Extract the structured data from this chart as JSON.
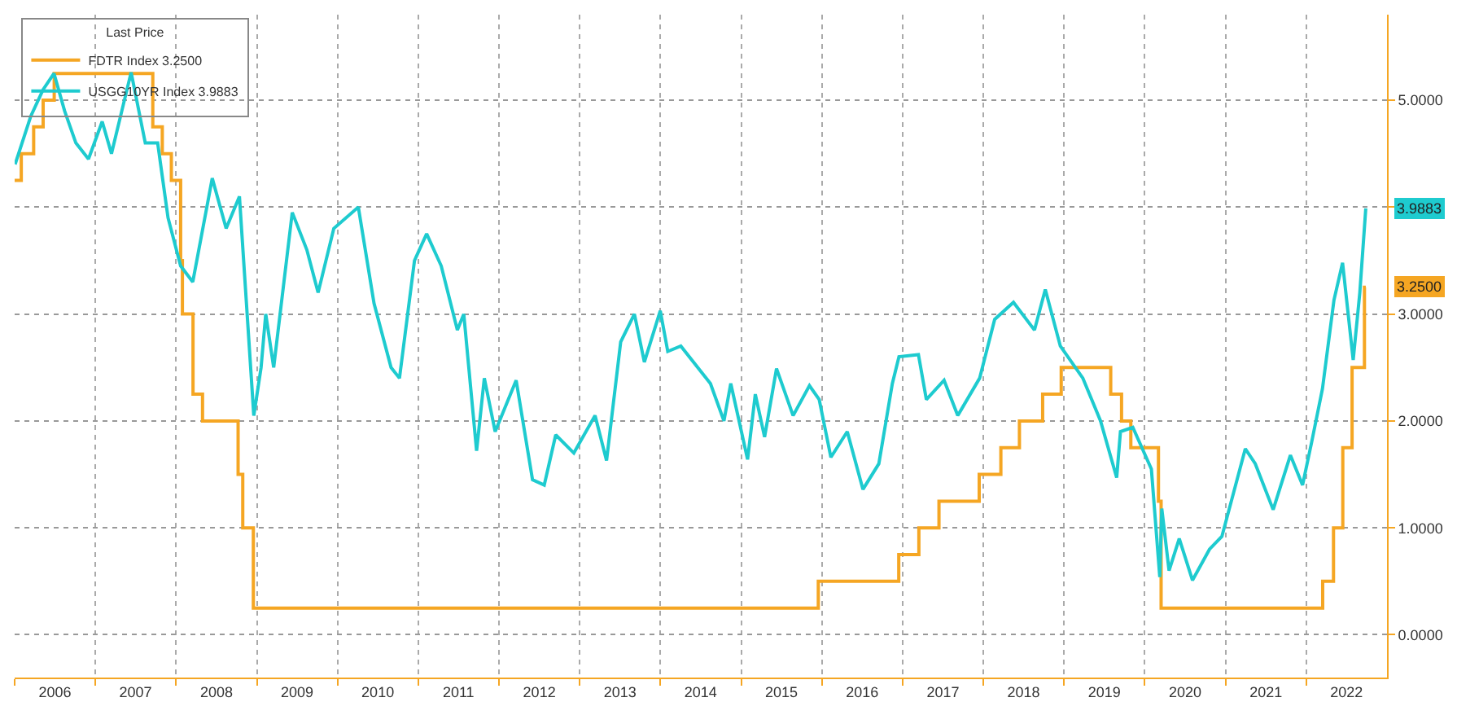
{
  "chart_data": {
    "type": "line",
    "legend_title": "Last Price",
    "legend": "top left",
    "grid": true,
    "xlim": [
      "2006-01-01",
      "2023-01-01"
    ],
    "xticks": [
      {
        "value": "2006-01-01",
        "label": null
      },
      {
        "value": "2006-07-02",
        "label": "2006"
      },
      {
        "value": "2007-01-01",
        "label": null
      },
      {
        "value": "2007-07-02",
        "label": "2007"
      },
      {
        "value": "2008-01-01",
        "label": null
      },
      {
        "value": "2008-07-02",
        "label": "2008"
      },
      {
        "value": "2009-01-01",
        "label": null
      },
      {
        "value": "2009-07-02",
        "label": "2009"
      },
      {
        "value": "2010-01-01",
        "label": null
      },
      {
        "value": "2010-07-02",
        "label": "2010"
      },
      {
        "value": "2011-01-01",
        "label": null
      },
      {
        "value": "2011-07-02",
        "label": "2011"
      },
      {
        "value": "2012-01-01",
        "label": null
      },
      {
        "value": "2012-07-02",
        "label": "2012"
      },
      {
        "value": "2013-01-01",
        "label": null
      },
      {
        "value": "2013-07-02",
        "label": "2013"
      },
      {
        "value": "2014-01-01",
        "label": null
      },
      {
        "value": "2014-07-02",
        "label": "2014"
      },
      {
        "value": "2015-01-01",
        "label": null
      },
      {
        "value": "2015-07-02",
        "label": "2015"
      },
      {
        "value": "2016-01-01",
        "label": null
      },
      {
        "value": "2016-07-02",
        "label": "2016"
      },
      {
        "value": "2017-01-01",
        "label": null
      },
      {
        "value": "2017-07-02",
        "label": "2017"
      },
      {
        "value": "2018-01-01",
        "label": null
      },
      {
        "value": "2018-07-02",
        "label": "2018"
      },
      {
        "value": "2019-01-01",
        "label": null
      },
      {
        "value": "2019-07-02",
        "label": "2019"
      },
      {
        "value": "2020-01-01",
        "label": null
      },
      {
        "value": "2020-07-02",
        "label": "2020"
      },
      {
        "value": "2021-01-01",
        "label": null
      },
      {
        "value": "2021-07-02",
        "label": "2021"
      },
      {
        "value": "2022-01-01",
        "label": null
      },
      {
        "value": "2022-07-02",
        "label": "2022"
      }
    ],
    "ylim": [
      -0.4,
      5.8
    ],
    "yticks": [
      {
        "value": 0,
        "label": "0.0000"
      },
      {
        "value": 1,
        "label": "1.0000"
      },
      {
        "value": 2,
        "label": "2.0000"
      },
      {
        "value": 3,
        "label": "3.0000"
      },
      {
        "value": 4,
        "label": null
      },
      {
        "value": 5,
        "label": "5.0000"
      }
    ],
    "series": [
      {
        "name": "FDTR Index 3.2500",
        "type": "step",
        "color": "#f5a623",
        "x": [
          "2006-01-01",
          "2006-01-31",
          "2006-03-28",
          "2006-05-10",
          "2006-06-29",
          "2007-09-18",
          "2007-10-31",
          "2007-12-11",
          "2008-01-22",
          "2008-01-30",
          "2008-03-18",
          "2008-04-30",
          "2008-10-08",
          "2008-10-29",
          "2008-12-16",
          "2015-12-16",
          "2016-12-14",
          "2017-03-15",
          "2017-06-14",
          "2017-12-13",
          "2018-03-21",
          "2018-06-13",
          "2018-09-26",
          "2018-12-19",
          "2019-07-31",
          "2019-09-18",
          "2019-10-30",
          "2020-03-03",
          "2020-03-15",
          "2022-03-16",
          "2022-05-04",
          "2022-06-15",
          "2022-07-27",
          "2022-09-21",
          "2022-09-27"
        ],
        "values": [
          4.25,
          4.5,
          4.75,
          5.0,
          5.25,
          4.75,
          4.5,
          4.25,
          3.5,
          3.0,
          2.25,
          2.0,
          1.5,
          1.0,
          0.25,
          0.5,
          0.75,
          1.0,
          1.25,
          1.5,
          1.75,
          2.0,
          2.25,
          2.5,
          2.25,
          2.0,
          1.75,
          1.25,
          0.25,
          0.5,
          1.0,
          1.75,
          2.5,
          3.25,
          3.25
        ]
      },
      {
        "name": "USGG10YR Index 3.9883",
        "color": "#1ecbcf",
        "x": [
          "2006-01-03",
          "2006-03-15",
          "2006-05-10",
          "2006-06-28",
          "2006-08-15",
          "2006-10-05",
          "2006-12-01",
          "2007-02-01",
          "2007-03-15",
          "2007-06-12",
          "2007-08-15",
          "2007-10-10",
          "2007-11-26",
          "2008-01-22",
          "2008-03-17",
          "2008-06-13",
          "2008-08-15",
          "2008-10-14",
          "2008-12-18",
          "2009-01-20",
          "2009-02-10",
          "2009-03-18",
          "2009-06-10",
          "2009-08-15",
          "2009-10-05",
          "2009-12-15",
          "2010-04-05",
          "2010-06-15",
          "2010-08-31",
          "2010-10-08",
          "2010-12-15",
          "2011-02-08",
          "2011-04-15",
          "2011-06-27",
          "2011-07-26",
          "2011-09-22",
          "2011-10-27",
          "2011-12-15",
          "2012-03-19",
          "2012-06-01",
          "2012-07-24",
          "2012-09-14",
          "2012-12-05",
          "2013-03-11",
          "2013-05-02",
          "2013-07-05",
          "2013-09-05",
          "2013-10-20",
          "2013-12-31",
          "2014-02-03",
          "2014-04-03",
          "2014-08-15",
          "2014-10-15",
          "2014-11-15",
          "2015-01-30",
          "2015-03-06",
          "2015-04-17",
          "2015-06-10",
          "2015-08-24",
          "2015-11-06",
          "2015-12-20",
          "2016-02-11",
          "2016-04-25",
          "2016-07-05",
          "2016-09-15",
          "2016-11-15",
          "2016-12-15",
          "2017-03-13",
          "2017-04-18",
          "2017-07-07",
          "2017-09-07",
          "2017-12-15",
          "2018-02-21",
          "2018-05-17",
          "2018-08-20",
          "2018-10-08",
          "2018-12-15",
          "2019-03-27",
          "2019-06-15",
          "2019-08-27",
          "2019-09-13",
          "2019-11-08",
          "2020-01-31",
          "2020-03-09",
          "2020-03-18",
          "2020-04-20",
          "2020-06-05",
          "2020-08-04",
          "2020-10-20",
          "2020-12-15",
          "2021-02-15",
          "2021-03-31",
          "2021-05-15",
          "2021-08-04",
          "2021-10-21",
          "2021-12-15",
          "2022-01-25",
          "2022-03-15",
          "2022-05-06",
          "2022-06-14",
          "2022-08-01",
          "2022-08-31",
          "2022-09-27"
        ],
        "values": [
          4.4,
          4.85,
          5.1,
          5.25,
          4.9,
          4.6,
          4.45,
          4.8,
          4.5,
          5.26,
          4.6,
          4.6,
          3.9,
          3.45,
          3.3,
          4.27,
          3.8,
          4.1,
          2.05,
          2.5,
          3.0,
          2.5,
          3.95,
          3.6,
          3.2,
          3.8,
          4.0,
          3.1,
          2.5,
          2.4,
          3.5,
          3.75,
          3.45,
          2.85,
          3.0,
          1.72,
          2.4,
          1.9,
          2.38,
          1.45,
          1.4,
          1.87,
          1.7,
          2.05,
          1.63,
          2.74,
          3.0,
          2.55,
          3.03,
          2.65,
          2.7,
          2.35,
          2.0,
          2.35,
          1.64,
          2.25,
          1.85,
          2.49,
          2.05,
          2.33,
          2.2,
          1.66,
          1.9,
          1.36,
          1.6,
          2.35,
          2.6,
          2.62,
          2.2,
          2.38,
          2.05,
          2.4,
          2.95,
          3.11,
          2.85,
          3.23,
          2.7,
          2.4,
          2.0,
          1.47,
          1.9,
          1.94,
          1.55,
          0.54,
          1.18,
          0.6,
          0.9,
          0.51,
          0.8,
          0.92,
          1.4,
          1.74,
          1.6,
          1.17,
          1.68,
          1.4,
          1.8,
          2.3,
          3.13,
          3.48,
          2.57,
          3.2,
          3.9883
        ]
      }
    ],
    "annotations": [
      {
        "text": "3.9883",
        "x": "2022-09-27",
        "y": 3.9883
      },
      {
        "text": "3.2500",
        "x": "2022-09-27",
        "y": 3.25
      }
    ]
  }
}
